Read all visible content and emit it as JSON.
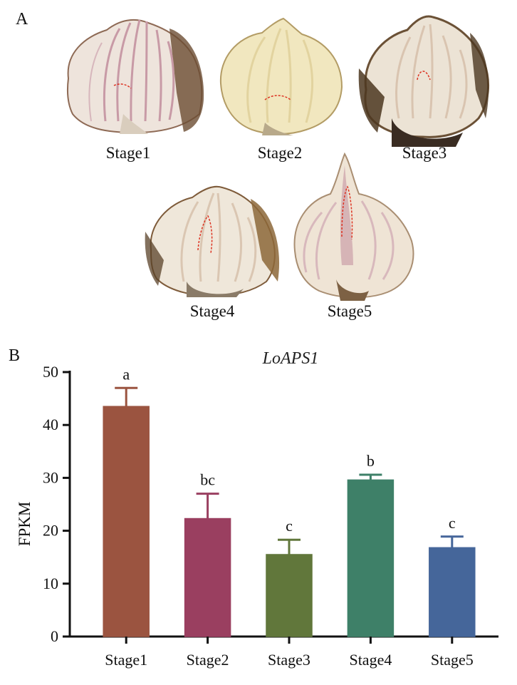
{
  "panels": {
    "a_label": "A",
    "b_label": "B"
  },
  "photos": [
    {
      "label": "Stage1"
    },
    {
      "label": "Stage2"
    },
    {
      "label": "Stage3"
    },
    {
      "label": "Stage4"
    },
    {
      "label": "Stage5"
    }
  ],
  "chart_data": {
    "type": "bar",
    "title": "LoAPS1",
    "ylabel": "FPKM",
    "xlabel": "",
    "categories": [
      "Stage1",
      "Stage2",
      "Stage3",
      "Stage4",
      "Stage5"
    ],
    "values": [
      43.5,
      22.3,
      15.5,
      29.6,
      16.8
    ],
    "errors": [
      3.5,
      4.7,
      2.8,
      1.0,
      2.1
    ],
    "significance": [
      "a",
      "bc",
      "c",
      "b",
      "c"
    ],
    "colors": [
      "#9b5440",
      "#9a3f60",
      "#61773b",
      "#3e8068",
      "#45669a"
    ],
    "ylim": [
      0,
      50
    ],
    "yticks": [
      "0",
      "10",
      "20",
      "30",
      "40",
      "50"
    ],
    "grid": false
  }
}
